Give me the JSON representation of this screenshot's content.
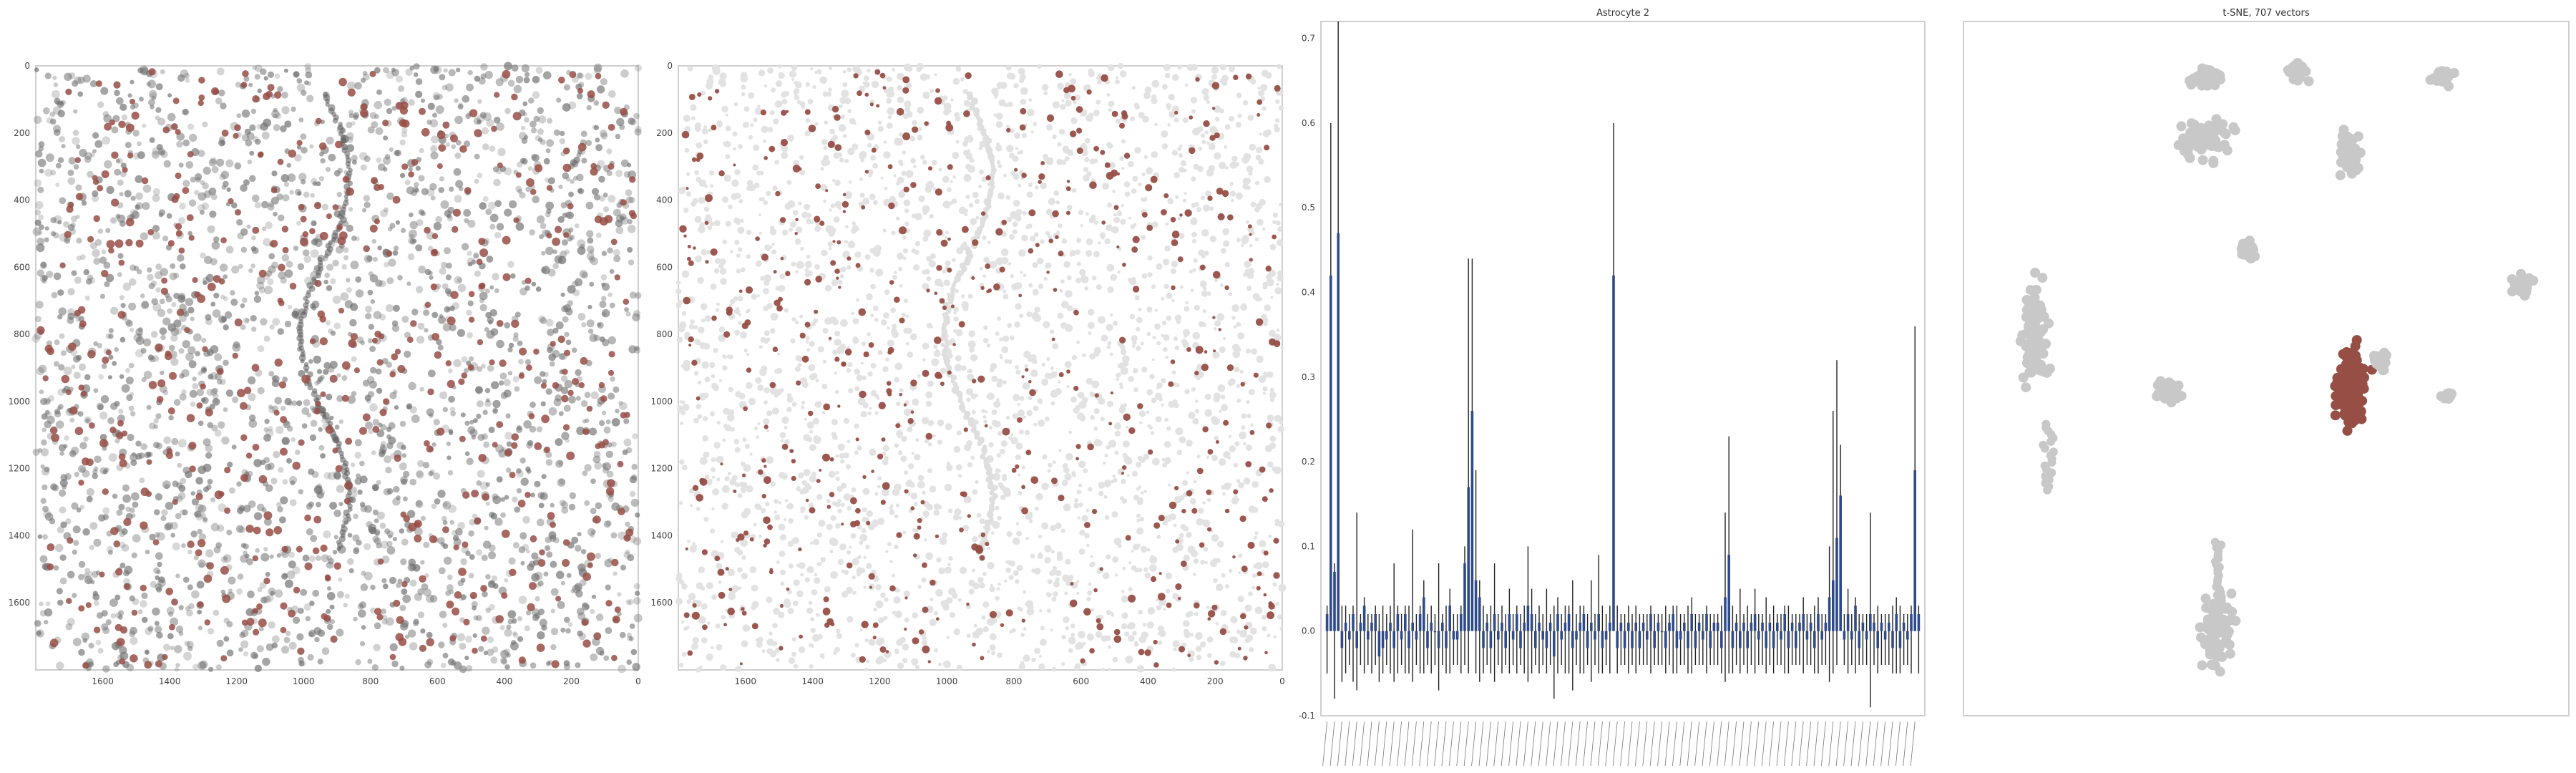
{
  "figure": {
    "background": "#ffffff",
    "accent_red": "#974e45",
    "point_gray": "#c8c8c8",
    "bar_blue": "#2f4b8a"
  },
  "chart_data": [
    {
      "type": "scatter",
      "title": "",
      "description_role": "tissue image panel 1",
      "xlim": [
        1800,
        0
      ],
      "ylim": [
        1800,
        0
      ],
      "xticks": [
        1600,
        1400,
        1200,
        1000,
        800,
        600,
        400,
        200,
        0
      ],
      "yticks": [
        0,
        200,
        400,
        600,
        800,
        1000,
        1200,
        1400,
        1600
      ],
      "series": [
        {
          "color": "#6f6f6f",
          "marker": "tissue"
        },
        {
          "color": "#974e45",
          "marker": "highlighted cells"
        }
      ]
    },
    {
      "type": "scatter",
      "title": "",
      "xlim": [
        1800,
        0
      ],
      "ylim": [
        1800,
        0
      ],
      "xticks": [
        1600,
        1400,
        1200,
        1000,
        800,
        600,
        400,
        200,
        0
      ],
      "yticks": [
        0,
        200,
        400,
        600,
        800,
        1000,
        1200,
        1400,
        1600
      ],
      "series": [
        {
          "color": "#e2e2e2",
          "marker": "cells"
        },
        {
          "color": "#974e45",
          "marker": "highlighted cells"
        }
      ]
    },
    {
      "type": "bar",
      "title": "Astrocyte 2",
      "ylim": [
        -0.1,
        0.72
      ],
      "yticks": [
        -0.1,
        0.0,
        0.1,
        0.2,
        0.3,
        0.4,
        0.5,
        0.6,
        0.7
      ],
      "bar_count": 160,
      "values": [
        0.02,
        0.42,
        0.07,
        0.47,
        -0.02,
        0.01,
        -0.01,
        0.02,
        -0.02,
        0.01,
        0.03,
        -0.01,
        0.01,
        0.02,
        -0.03,
        -0.02,
        -0.01,
        0.01,
        -0.02,
        0.02,
        -0.01,
        0.02,
        -0.02,
        0.01,
        -0.01,
        0.02,
        0.04,
        -0.02,
        0.01,
        0.0,
        -0.02,
        0.01,
        -0.02,
        0.03,
        -0.01,
        -0.01,
        0.02,
        0.08,
        0.17,
        0.26,
        0.06,
        0.04,
        -0.02,
        0.01,
        -0.02,
        0.02,
        -0.01,
        0.01,
        -0.02,
        0.02,
        -0.01,
        0.02,
        -0.02,
        0.01,
        0.03,
        0.02,
        -0.02,
        0.01,
        -0.01,
        -0.02,
        0.01,
        -0.03,
        0.02,
        -0.01,
        0.01,
        0.02,
        -0.02,
        -0.01,
        0.01,
        0.02,
        -0.02,
        0.01,
        -0.01,
        0.02,
        -0.02,
        -0.01,
        0.01,
        0.42,
        -0.02,
        0.01,
        -0.02,
        0.01,
        -0.02,
        0.01,
        -0.02,
        0.01,
        -0.01,
        0.02,
        -0.02,
        0.01,
        0.0,
        -0.02,
        0.01,
        0.02,
        -0.02,
        -0.01,
        0.01,
        -0.02,
        0.02,
        -0.02,
        0.01,
        -0.01,
        0.02,
        -0.02,
        0.01,
        0.01,
        -0.02,
        0.04,
        0.09,
        -0.02,
        0.01,
        -0.02,
        0.01,
        -0.02,
        0.01,
        0.02,
        -0.01,
        0.01,
        -0.02,
        0.01,
        -0.02,
        0.01,
        -0.01,
        0.02,
        -0.02,
        0.01,
        -0.02,
        0.01,
        0.02,
        -0.01,
        0.01,
        -0.02,
        0.02,
        -0.01,
        0.01,
        0.04,
        0.06,
        0.11,
        0.16,
        -0.01,
        0.02,
        -0.01,
        0.03,
        -0.02,
        0.01,
        -0.01,
        0.02,
        0.01,
        -0.02,
        0.01,
        -0.01,
        0.01,
        -0.02,
        0.02,
        -0.02,
        0.01,
        -0.01,
        0.02,
        0.19,
        0.02
      ],
      "err_high": [
        0.03,
        0.6,
        0.08,
        0.72,
        0.03,
        0.03,
        0.02,
        0.03,
        0.14,
        0.02,
        0.04,
        0.02,
        0.02,
        0.03,
        0.02,
        0.03,
        0.02,
        0.03,
        0.08,
        0.03,
        0.02,
        0.03,
        0.03,
        0.12,
        0.02,
        0.03,
        0.06,
        0.02,
        0.03,
        0.02,
        0.08,
        0.02,
        0.03,
        0.05,
        0.02,
        0.02,
        0.03,
        0.1,
        0.44,
        0.44,
        0.19,
        0.06,
        0.03,
        0.02,
        0.03,
        0.08,
        0.02,
        0.03,
        0.02,
        0.05,
        0.02,
        0.03,
        0.02,
        0.03,
        0.1,
        0.05,
        0.02,
        0.03,
        0.02,
        0.05,
        0.02,
        0.03,
        0.04,
        0.02,
        0.03,
        0.03,
        0.06,
        0.02,
        0.03,
        0.03,
        0.02,
        0.06,
        0.02,
        0.09,
        0.03,
        0.02,
        0.03,
        0.6,
        0.03,
        0.02,
        0.02,
        0.03,
        0.02,
        0.03,
        0.02,
        0.02,
        0.02,
        0.03,
        0.02,
        0.02,
        0.02,
        0.03,
        0.02,
        0.03,
        0.03,
        0.02,
        0.02,
        0.03,
        0.04,
        0.02,
        0.02,
        0.02,
        0.03,
        0.02,
        0.02,
        0.02,
        0.03,
        0.14,
        0.23,
        0.03,
        0.02,
        0.05,
        0.02,
        0.03,
        0.02,
        0.05,
        0.02,
        0.02,
        0.04,
        0.02,
        0.03,
        0.02,
        0.02,
        0.03,
        0.03,
        0.02,
        0.02,
        0.02,
        0.04,
        0.02,
        0.02,
        0.03,
        0.04,
        0.02,
        0.02,
        0.1,
        0.26,
        0.32,
        0.22,
        0.02,
        0.05,
        0.02,
        0.04,
        0.02,
        0.02,
        0.02,
        0.14,
        0.02,
        0.03,
        0.02,
        0.02,
        0.02,
        0.03,
        0.04,
        0.03,
        0.02,
        0.02,
        0.03,
        0.36,
        0.03
      ],
      "err_low": [
        -0.05,
        0.25,
        -0.08,
        0.25,
        -0.06,
        -0.05,
        -0.04,
        -0.06,
        -0.07,
        -0.04,
        -0.05,
        -0.04,
        -0.05,
        -0.04,
        -0.06,
        -0.05,
        -0.04,
        -0.05,
        -0.06,
        -0.05,
        -0.04,
        -0.05,
        -0.05,
        -0.06,
        -0.04,
        -0.05,
        -0.05,
        -0.04,
        -0.05,
        -0.04,
        -0.07,
        -0.04,
        -0.05,
        -0.05,
        -0.04,
        -0.04,
        -0.05,
        -0.04,
        -0.05,
        0.07,
        -0.05,
        -0.06,
        -0.05,
        -0.04,
        -0.05,
        -0.06,
        -0.04,
        -0.05,
        -0.04,
        -0.05,
        -0.04,
        -0.05,
        -0.04,
        -0.05,
        -0.06,
        -0.05,
        -0.04,
        -0.05,
        -0.04,
        -0.05,
        -0.04,
        -0.08,
        -0.05,
        -0.04,
        -0.05,
        -0.05,
        -0.07,
        -0.04,
        -0.05,
        -0.05,
        -0.04,
        -0.06,
        -0.04,
        -0.05,
        -0.05,
        -0.04,
        -0.05,
        0.24,
        -0.05,
        -0.04,
        -0.04,
        -0.05,
        -0.04,
        -0.05,
        -0.04,
        -0.04,
        -0.04,
        -0.05,
        -0.04,
        -0.04,
        -0.04,
        -0.05,
        -0.04,
        -0.05,
        -0.05,
        -0.04,
        -0.04,
        -0.05,
        -0.05,
        -0.04,
        -0.04,
        -0.04,
        -0.05,
        -0.04,
        -0.04,
        -0.04,
        -0.05,
        -0.06,
        -0.05,
        -0.05,
        -0.04,
        -0.05,
        -0.04,
        -0.05,
        -0.04,
        -0.05,
        -0.04,
        -0.04,
        -0.05,
        -0.04,
        -0.05,
        -0.04,
        -0.04,
        -0.05,
        -0.05,
        -0.04,
        -0.04,
        -0.04,
        -0.05,
        -0.04,
        -0.04,
        -0.05,
        -0.05,
        -0.04,
        -0.04,
        -0.06,
        -0.05,
        -0.04,
        0.06,
        -0.04,
        -0.05,
        -0.04,
        -0.05,
        -0.04,
        -0.04,
        -0.04,
        -0.09,
        -0.04,
        -0.05,
        -0.04,
        -0.04,
        -0.04,
        -0.05,
        -0.05,
        -0.05,
        -0.04,
        -0.04,
        -0.05,
        0.04,
        -0.05
      ],
      "xtick_labels_note_free": ""
    },
    {
      "type": "scatter",
      "title": "t-SNE, 707 vectors",
      "series": [
        {
          "color": "#c8c8c8",
          "marker": "all vectors"
        },
        {
          "color": "#974e45",
          "marker": "selected cluster"
        }
      ],
      "clusters": [
        {
          "name": "",
          "cx": 0.4,
          "cy": 0.08,
          "n": 40
        },
        {
          "name": "",
          "cx": 0.55,
          "cy": 0.07,
          "n": 30
        },
        {
          "name": "",
          "cx": 0.79,
          "cy": 0.08,
          "n": 30
        },
        {
          "name": "",
          "cx": 0.4,
          "cy": 0.17,
          "n": 60
        },
        {
          "name": "",
          "cx": 0.64,
          "cy": 0.19,
          "n": 45
        },
        {
          "name": "",
          "cx": 0.47,
          "cy": 0.33,
          "n": 25
        },
        {
          "name": "",
          "cx": 0.92,
          "cy": 0.38,
          "n": 30
        },
        {
          "name": "",
          "cx": 0.12,
          "cy": 0.45,
          "n": 110
        },
        {
          "name": "",
          "cx": 0.34,
          "cy": 0.53,
          "n": 40
        },
        {
          "name": "",
          "cx": 0.8,
          "cy": 0.54,
          "n": 15
        },
        {
          "name": "",
          "cx": 0.42,
          "cy": 0.88,
          "n": 90
        },
        {
          "name": "",
          "cx": 0.64,
          "cy": 0.53,
          "n": 160
        }
      ]
    }
  ]
}
